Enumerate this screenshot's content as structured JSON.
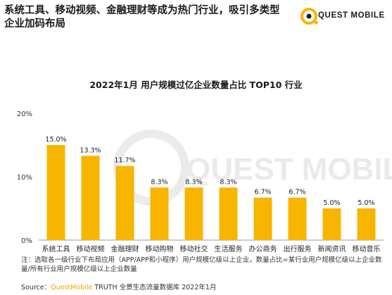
{
  "headline": "系统工具、移动视频、金融理财等成为热门行业，吸引多类型企业加码布局",
  "logo": {
    "text": "QUEST MOBILE",
    "watermark": "QUEST MOBILE"
  },
  "chart_data": {
    "type": "bar",
    "title": "2022年1月 用户规模过亿企业数量占比 TOP10 行业",
    "categories": [
      "系统工具",
      "移动视频",
      "金融理财",
      "移动购物",
      "移动社交",
      "生活服务",
      "办公商务",
      "出行服务",
      "新闻资讯",
      "移动音乐"
    ],
    "values": [
      15.0,
      13.3,
      11.7,
      8.3,
      8.3,
      8.3,
      6.7,
      6.7,
      5.0,
      5.0
    ],
    "value_labels": [
      "15.0%",
      "13.3%",
      "11.7%",
      "8.3%",
      "8.3%",
      "8.3%",
      "6.7%",
      "6.7%",
      "5.0%",
      "5.0%"
    ],
    "ylim": [
      0,
      20
    ],
    "yticks": [
      0,
      10,
      20
    ],
    "ytick_labels": [
      "0%",
      "10%",
      "20%"
    ],
    "bar_color": "#f7b500",
    "grid": false
  },
  "note": "注：选取各一级行业下布局应用（APP/APP和小程序）用户规模亿级以上企业，数量占比=某行业用户规模亿级以上企业数量/所有行业用户规模亿级以上企业数量",
  "source": {
    "prefix": "Source：",
    "brand": "QuestMobile",
    "rest": " TRUTH 全景生态流量数据库 2022年1月"
  },
  "colors": {
    "accent": "#f7b500",
    "text": "#1a1a1a"
  }
}
